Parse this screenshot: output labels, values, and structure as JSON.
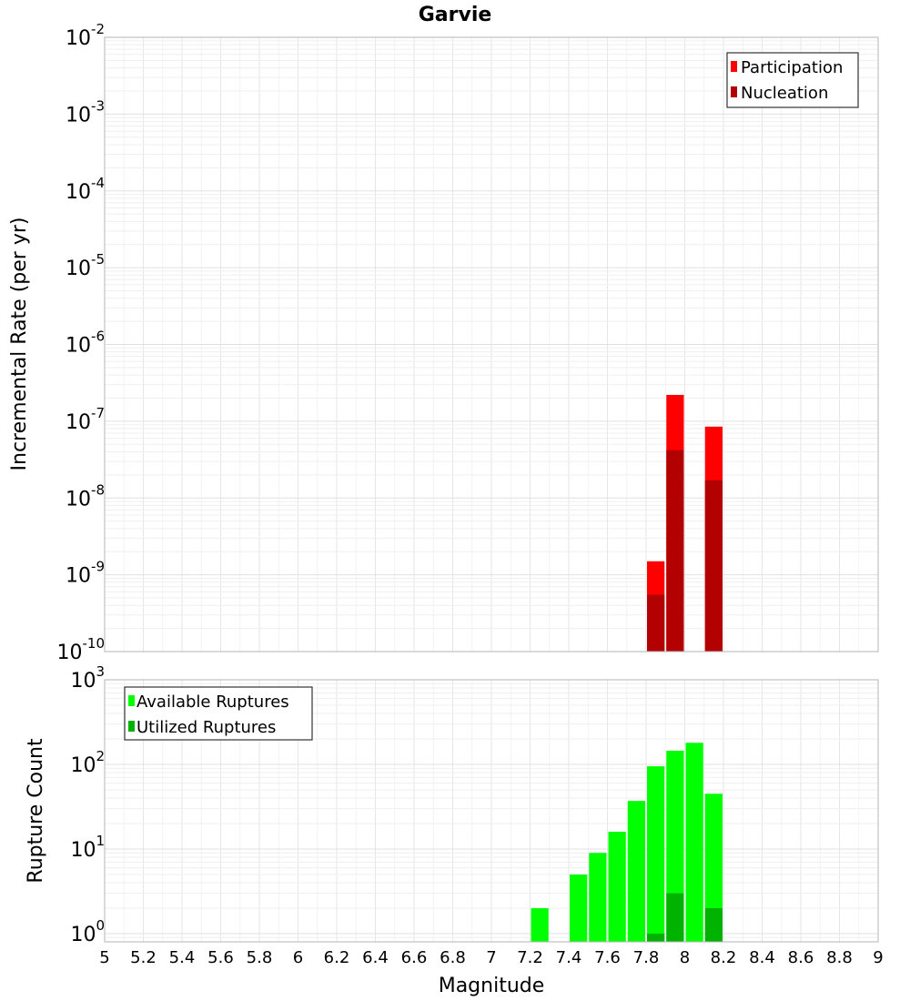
{
  "title": "Garvie",
  "colors": {
    "participation": "#ff0000",
    "nucleation": "#b30000",
    "available": "#00ff00",
    "utilized": "#00b300",
    "grid": "#ebebeb",
    "frame": "#b4b4b4"
  },
  "chart_data": [
    {
      "type": "bar",
      "title": "Garvie",
      "ylabel": "Incremental Rate (per yr)",
      "xlabel": "",
      "yscale": "log",
      "ylim": [
        1e-10,
        0.01
      ],
      "xlim": [
        5,
        9
      ],
      "ytick_bases": [
        "10",
        "10",
        "10",
        "10",
        "10",
        "10",
        "10",
        "10",
        "10"
      ],
      "ytick_exps": [
        "-10",
        "-9",
        "-8",
        "-7",
        "-6",
        "-5",
        "-4",
        "-3",
        "-2"
      ],
      "ytick_values": [
        1e-10,
        1e-09,
        1e-08,
        1e-07,
        1e-06,
        1e-05,
        0.0001,
        0.001,
        0.01
      ],
      "grid": true,
      "legend_position": "top-right",
      "series": [
        {
          "name": "Participation",
          "x": [
            7.85,
            7.95,
            8.15
          ],
          "values": [
            1.5e-09,
            2.2e-07,
            8.5e-08
          ]
        },
        {
          "name": "Nucleation",
          "x": [
            7.85,
            7.95,
            8.15
          ],
          "values": [
            5.5e-10,
            4.2e-08,
            1.7e-08
          ]
        }
      ]
    },
    {
      "type": "bar",
      "ylabel": "Rupture Count",
      "xlabel": "Magnitude",
      "yscale": "log",
      "ylim": [
        0.8,
        1000
      ],
      "xlim": [
        5,
        9
      ],
      "ytick_bases": [
        "10",
        "10",
        "10",
        "10"
      ],
      "ytick_exps": [
        "0",
        "1",
        "2",
        "3"
      ],
      "ytick_values": [
        1,
        10,
        100,
        1000
      ],
      "xticks": [
        "5",
        "5.2",
        "5.4",
        "5.6",
        "5.8",
        "6",
        "6.2",
        "6.4",
        "6.6",
        "6.8",
        "7",
        "7.2",
        "7.4",
        "7.6",
        "7.8",
        "8",
        "8.2",
        "8.4",
        "8.6",
        "8.8",
        "9"
      ],
      "grid": true,
      "legend_position": "top-left",
      "series": [
        {
          "name": "Available Ruptures",
          "x": [
            7.25,
            7.45,
            7.55,
            7.65,
            7.75,
            7.85,
            7.95,
            8.05,
            8.15
          ],
          "values": [
            2,
            5,
            9,
            16,
            37,
            95,
            145,
            180,
            45
          ]
        },
        {
          "name": "Utilized Ruptures",
          "x": [
            7.85,
            7.95,
            8.15
          ],
          "values": [
            1,
            3,
            2
          ]
        }
      ]
    }
  ]
}
